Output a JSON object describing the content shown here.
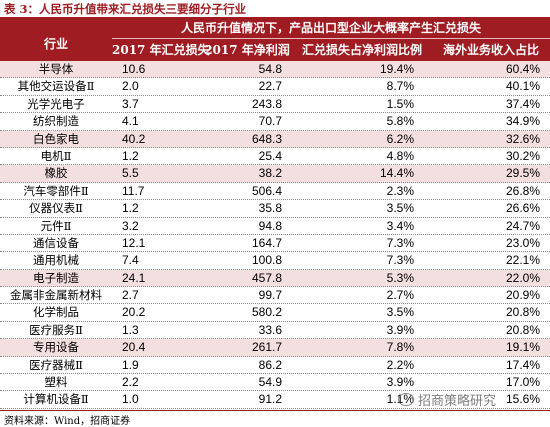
{
  "title": "表 3：人民币升值带来汇兑损失三要细分子行业",
  "header": {
    "super": "人民币升值情况下，产品出口型企业大概率产生汇兑损失",
    "columns": [
      "行业",
      "2017 年汇兑损失",
      "2017 年净利润",
      "汇兑损失占净利润比例",
      "海外业务收入占比"
    ]
  },
  "rows": [
    {
      "industry": "半导体",
      "loss": "10.6",
      "profit": "54.8",
      "ratio": "19.4%",
      "overseas": "60.4%"
    },
    {
      "industry": "其他交运设备Ⅱ",
      "loss": "2.0",
      "profit": "22.7",
      "ratio": "8.7%",
      "overseas": "40.1%"
    },
    {
      "industry": "光学光电子",
      "loss": "3.7",
      "profit": "243.8",
      "ratio": "1.5%",
      "overseas": "37.4%"
    },
    {
      "industry": "纺织制造",
      "loss": "4.1",
      "profit": "70.7",
      "ratio": "5.8%",
      "overseas": "34.9%"
    },
    {
      "industry": "白色家电",
      "loss": "40.2",
      "profit": "648.3",
      "ratio": "6.2%",
      "overseas": "32.6%"
    },
    {
      "industry": "电机Ⅱ",
      "loss": "1.2",
      "profit": "25.4",
      "ratio": "4.8%",
      "overseas": "30.2%"
    },
    {
      "industry": "橡胶",
      "loss": "5.5",
      "profit": "38.2",
      "ratio": "14.4%",
      "overseas": "29.5%"
    },
    {
      "industry": "汽车零部件Ⅱ",
      "loss": "11.7",
      "profit": "506.4",
      "ratio": "2.3%",
      "overseas": "26.8%"
    },
    {
      "industry": "仪器仪表Ⅱ",
      "loss": "1.2",
      "profit": "35.8",
      "ratio": "3.5%",
      "overseas": "26.6%"
    },
    {
      "industry": "元件Ⅱ",
      "loss": "3.2",
      "profit": "94.8",
      "ratio": "3.4%",
      "overseas": "24.7%"
    },
    {
      "industry": "通信设备",
      "loss": "12.1",
      "profit": "164.7",
      "ratio": "7.3%",
      "overseas": "23.0%"
    },
    {
      "industry": "通用机械",
      "loss": "7.4",
      "profit": "100.8",
      "ratio": "7.3%",
      "overseas": "22.1%"
    },
    {
      "industry": "电子制造",
      "loss": "24.1",
      "profit": "457.8",
      "ratio": "5.3%",
      "overseas": "22.0%"
    },
    {
      "industry": "金属非金属新材料",
      "loss": "2.7",
      "profit": "99.7",
      "ratio": "2.7%",
      "overseas": "20.9%"
    },
    {
      "industry": "化学制品",
      "loss": "20.2",
      "profit": "580.2",
      "ratio": "3.5%",
      "overseas": "20.8%"
    },
    {
      "industry": "医疗服务Ⅱ",
      "loss": "1.3",
      "profit": "33.6",
      "ratio": "3.9%",
      "overseas": "20.8%"
    },
    {
      "industry": "专用设备",
      "loss": "20.4",
      "profit": "261.7",
      "ratio": "7.8%",
      "overseas": "19.1%"
    },
    {
      "industry": "医疗器械Ⅱ",
      "loss": "1.9",
      "profit": "86.2",
      "ratio": "2.2%",
      "overseas": "17.4%"
    },
    {
      "industry": "塑料",
      "loss": "2.2",
      "profit": "54.9",
      "ratio": "3.9%",
      "overseas": "17.0%"
    },
    {
      "industry": "计算机设备Ⅱ",
      "loss": "1.0",
      "profit": "91.2",
      "ratio": "1.1%",
      "overseas": "15.6%"
    }
  ],
  "source": "资料来源：Wind，招商证券",
  "watermark": "招商策略研究",
  "colors": {
    "accent": "#9e1c22",
    "shade": "#f3dfe0"
  }
}
